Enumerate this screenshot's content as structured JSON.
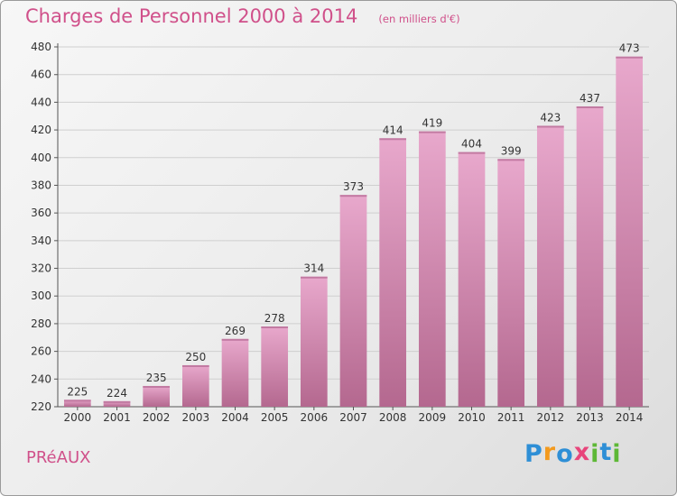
{
  "title": "Charges de Personnel 2000 à 2014",
  "subtitle": "(en milliers d'€)",
  "place": "PRéAUX",
  "brand": {
    "name": "Proxiti",
    "letters": [
      {
        "ch": "P",
        "color": "#2e8fd6"
      },
      {
        "ch": "r",
        "color": "#f39a1e"
      },
      {
        "ch": "o",
        "color": "#2e8fd6"
      },
      {
        "ch": "x",
        "color": "#e8457b"
      },
      {
        "ch": "i",
        "color": "#5db836"
      },
      {
        "ch": "t",
        "color": "#2e8fd6"
      },
      {
        "ch": "i",
        "color": "#5db836"
      }
    ]
  },
  "colors": {
    "accent": "#d0508a",
    "bar_top": "#e8a8cc",
    "bar_bottom": "#b4688f",
    "grid": "#cfcfcf",
    "axis": "#555555"
  },
  "chart_data": {
    "type": "bar",
    "categories": [
      "2000",
      "2001",
      "2002",
      "2003",
      "2004",
      "2005",
      "2006",
      "2007",
      "2008",
      "2009",
      "2010",
      "2011",
      "2012",
      "2013",
      "2014"
    ],
    "values": [
      225,
      224,
      235,
      250,
      269,
      278,
      314,
      373,
      414,
      419,
      404,
      399,
      423,
      437,
      473
    ],
    "ylim": [
      220,
      480
    ],
    "yticks": [
      220,
      240,
      260,
      280,
      300,
      320,
      340,
      360,
      380,
      400,
      420,
      440,
      460,
      480
    ],
    "grid": true,
    "xlabel": "",
    "ylabel": ""
  }
}
